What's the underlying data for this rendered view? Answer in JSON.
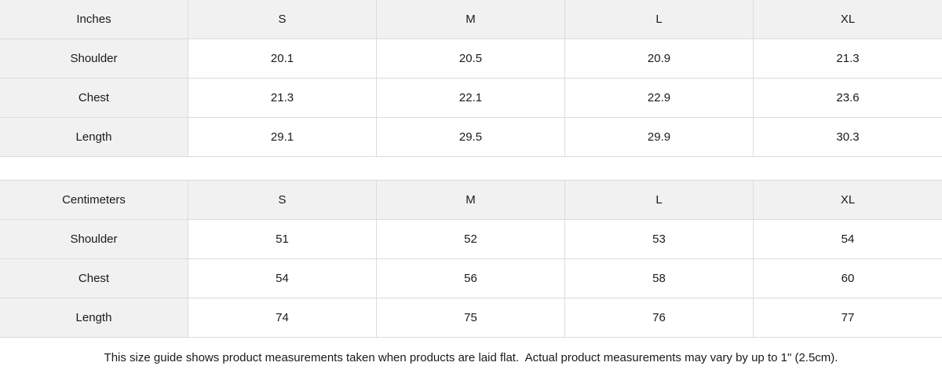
{
  "colors": {
    "header_fill": "#f1f1f1",
    "cell_fill": "#ffffff",
    "border": "#dcdcdc",
    "text": "#1a1a1a"
  },
  "chart_data": [
    {
      "type": "table",
      "title": "Inches",
      "columns": [
        "Inches",
        "S",
        "M",
        "L",
        "XL"
      ],
      "rows": [
        [
          "Shoulder",
          "20.1",
          "20.5",
          "20.9",
          "21.3"
        ],
        [
          "Chest",
          "21.3",
          "22.1",
          "22.9",
          "23.6"
        ],
        [
          "Length",
          "29.1",
          "29.5",
          "29.9",
          "30.3"
        ]
      ]
    },
    {
      "type": "table",
      "title": "Centimeters",
      "columns": [
        "Centimeters",
        "S",
        "M",
        "L",
        "XL"
      ],
      "rows": [
        [
          "Shoulder",
          "51",
          "52",
          "53",
          "54"
        ],
        [
          "Chest",
          "54",
          "56",
          "58",
          "60"
        ],
        [
          "Length",
          "74",
          "75",
          "76",
          "77"
        ]
      ]
    }
  ],
  "footnote": "This size guide shows product measurements taken when products are laid flat.  Actual product measurements may vary by up to 1\" (2.5cm)."
}
